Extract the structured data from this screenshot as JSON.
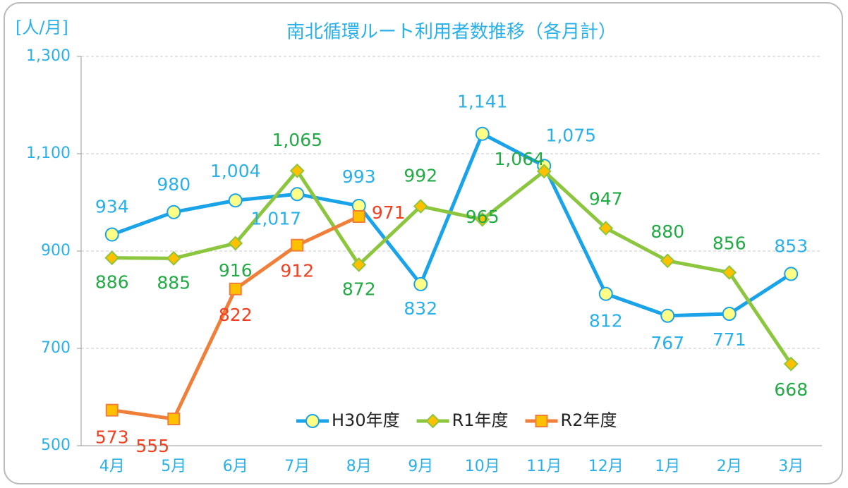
{
  "chart_data": {
    "type": "line",
    "title": "南北循環ルート利用者数推移（各月計）",
    "y_axis_label": "[人/月]",
    "categories": [
      "4月",
      "5月",
      "6月",
      "7月",
      "8月",
      "9月",
      "10月",
      "11月",
      "12月",
      "1月",
      "2月",
      "3月"
    ],
    "ylim": [
      500,
      1300
    ],
    "yticks": [
      500,
      700,
      900,
      {
        "value": 1100,
        "label": "1,100"
      },
      {
        "value": 1300,
        "label": "1,300"
      }
    ],
    "grid": true,
    "legend": "bottom",
    "series": [
      {
        "name": "H30年度",
        "color": "#1aa3e8",
        "marker": "circle",
        "marker_color": "#ffff88",
        "label_color": "#2ab0e8",
        "values": [
          934,
          980,
          1004,
          1017,
          993,
          832,
          1141,
          1075,
          812,
          767,
          771,
          853
        ],
        "value_labels": [
          "934",
          "980",
          "1,004",
          "1,017",
          "993",
          "832",
          "1,141",
          "1,075",
          "812",
          "767",
          "771",
          "853"
        ]
      },
      {
        "name": "R1年度",
        "color": "#8cc63f",
        "marker": "diamond",
        "marker_color": "#ffc000",
        "label_color": "#22aa44",
        "values": [
          886,
          885,
          916,
          1065,
          872,
          992,
          965,
          1064,
          947,
          880,
          856,
          668
        ],
        "value_labels": [
          "886",
          "885",
          "916",
          "1,065",
          "872",
          "992",
          "965",
          "1,064",
          "947",
          "880",
          "856",
          "668"
        ]
      },
      {
        "name": "R2年度",
        "color": "#f07f3a",
        "marker": "square",
        "marker_color": "#ffc000",
        "label_color": "#f04020",
        "values": [
          573,
          555,
          822,
          912,
          971,
          null,
          null,
          null,
          null,
          null,
          null,
          null
        ],
        "value_labels": [
          "573",
          "555",
          "822",
          "912",
          "971",
          null,
          null,
          null,
          null,
          null,
          null,
          null
        ]
      }
    ]
  }
}
